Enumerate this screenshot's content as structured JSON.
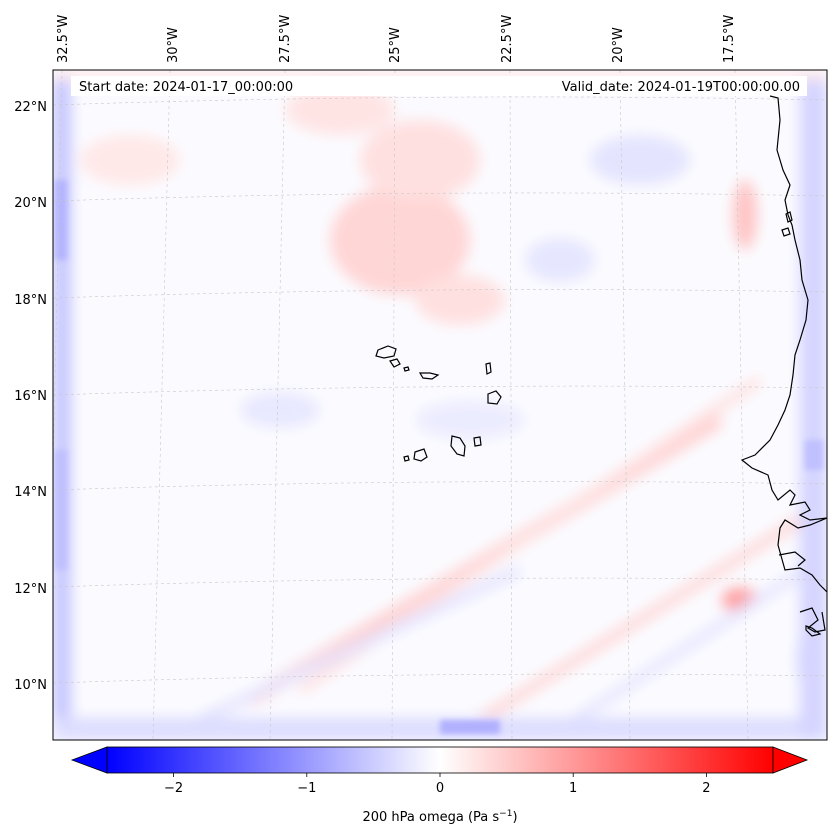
{
  "map": {
    "header": {
      "start_date": "Start date: 2024-01-17_00:00:00",
      "valid_date": "Valid_date: 2024-01-19T00:00:00.00"
    },
    "lon_labels": [
      "32.5°W",
      "30°W",
      "27.5°W",
      "25°W",
      "22.5°W",
      "20°W",
      "17.5°W"
    ],
    "lat_labels": [
      "22°N",
      "20°N",
      "18°N",
      "16°N",
      "14°N",
      "12°N",
      "10°N"
    ],
    "colors": {
      "negative": "#0000ff",
      "positive": "#ff0000",
      "neutral": "#ffffff",
      "coastline": "#000000",
      "gridline": "#c8c8c8"
    }
  },
  "colorbar": {
    "label": "200 hPa omega (Pa s",
    "label_exponent": "−1",
    "label_close": ")",
    "tick_labels": [
      "−2",
      "−1",
      "0",
      "1",
      "2"
    ],
    "tick_values": [
      -2,
      -1,
      0,
      1,
      2
    ],
    "vmin": -2.5,
    "vmax": 2.5,
    "extend": "both"
  }
}
